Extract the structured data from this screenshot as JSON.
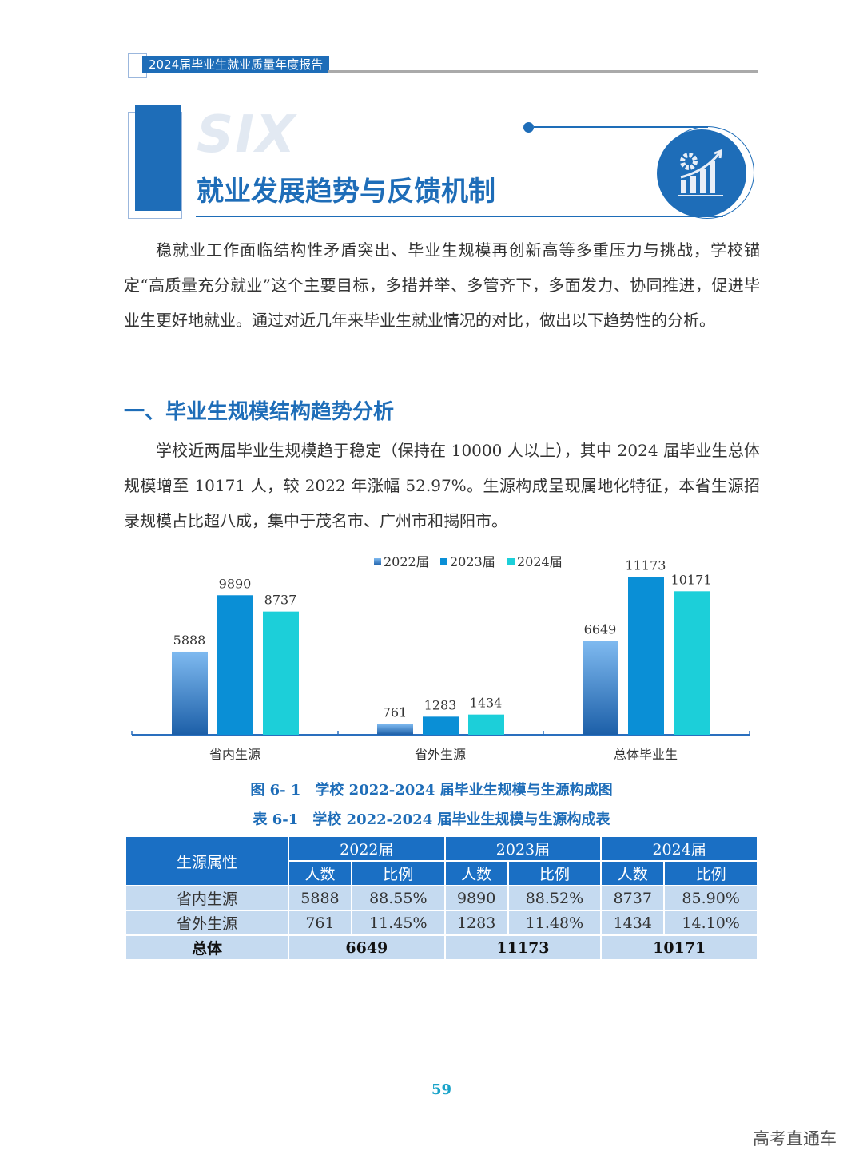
{
  "header": {
    "report_title": "2024届毕业生就业质量年度报告"
  },
  "chapter": {
    "number_word": "SIX",
    "title": "就业发展趋势与反馈机制",
    "icon": "gear-chart-growth-icon"
  },
  "intro": "稳就业工作面临结构性矛盾突出、毕业生规模再创新高等多重压力与挑战，学校锚定“高质量充分就业”这个主要目标，多措并举、多管齐下，多面发力、协同推进，促进毕业生更好地就业。通过对近几年来毕业生就业情况的对比，做出以下趋势性的分析。",
  "section1": {
    "heading": "一、毕业生规模结构趋势分析",
    "text": "学校近两届毕业生规模趋于稳定（保持在 10000 人以上），其中 2024 届毕业生总体规模增至 10171 人，较 2022 年涨幅 52.97%。生源构成呈现属地化特征，本省生源招录规模占比超八成，集中于茂名市、广州市和揭阳市。"
  },
  "chart_data": {
    "type": "bar",
    "categories": [
      "省内生源",
      "省外生源",
      "总体毕业生"
    ],
    "series": [
      {
        "name": "2022届",
        "values": [
          5888,
          761,
          6649
        ],
        "color": "#2a6fbe"
      },
      {
        "name": "2023届",
        "values": [
          9890,
          1283,
          11173
        ],
        "color": "#0a8fd6"
      },
      {
        "name": "2024届",
        "values": [
          8737,
          1434,
          10171
        ],
        "color": "#1ccfd9"
      }
    ],
    "ylim": [
      0,
      12000
    ],
    "grid": false,
    "legend": "top-center"
  },
  "figure_caption": "图 6- 1　学校 2022-2024 届毕业生规模与生源构成图",
  "table_caption": "表 6-1　学校 2022-2024 届毕业生规模与生源构成表",
  "table": {
    "row_header": "生源属性",
    "years": [
      "2022届",
      "2023届",
      "2024届"
    ],
    "sub": [
      "人数",
      "比例"
    ],
    "rows": [
      {
        "label": "省内生源",
        "cells": [
          "5888",
          "88.55%",
          "9890",
          "88.52%",
          "8737",
          "85.90%"
        ]
      },
      {
        "label": "省外生源",
        "cells": [
          "761",
          "11.45%",
          "1283",
          "11.48%",
          "1434",
          "14.10%"
        ]
      }
    ],
    "total": {
      "label": "总体",
      "cells": [
        "6649",
        "11173",
        "10171"
      ]
    }
  },
  "page_number": "59",
  "watermark": "高考直通车"
}
